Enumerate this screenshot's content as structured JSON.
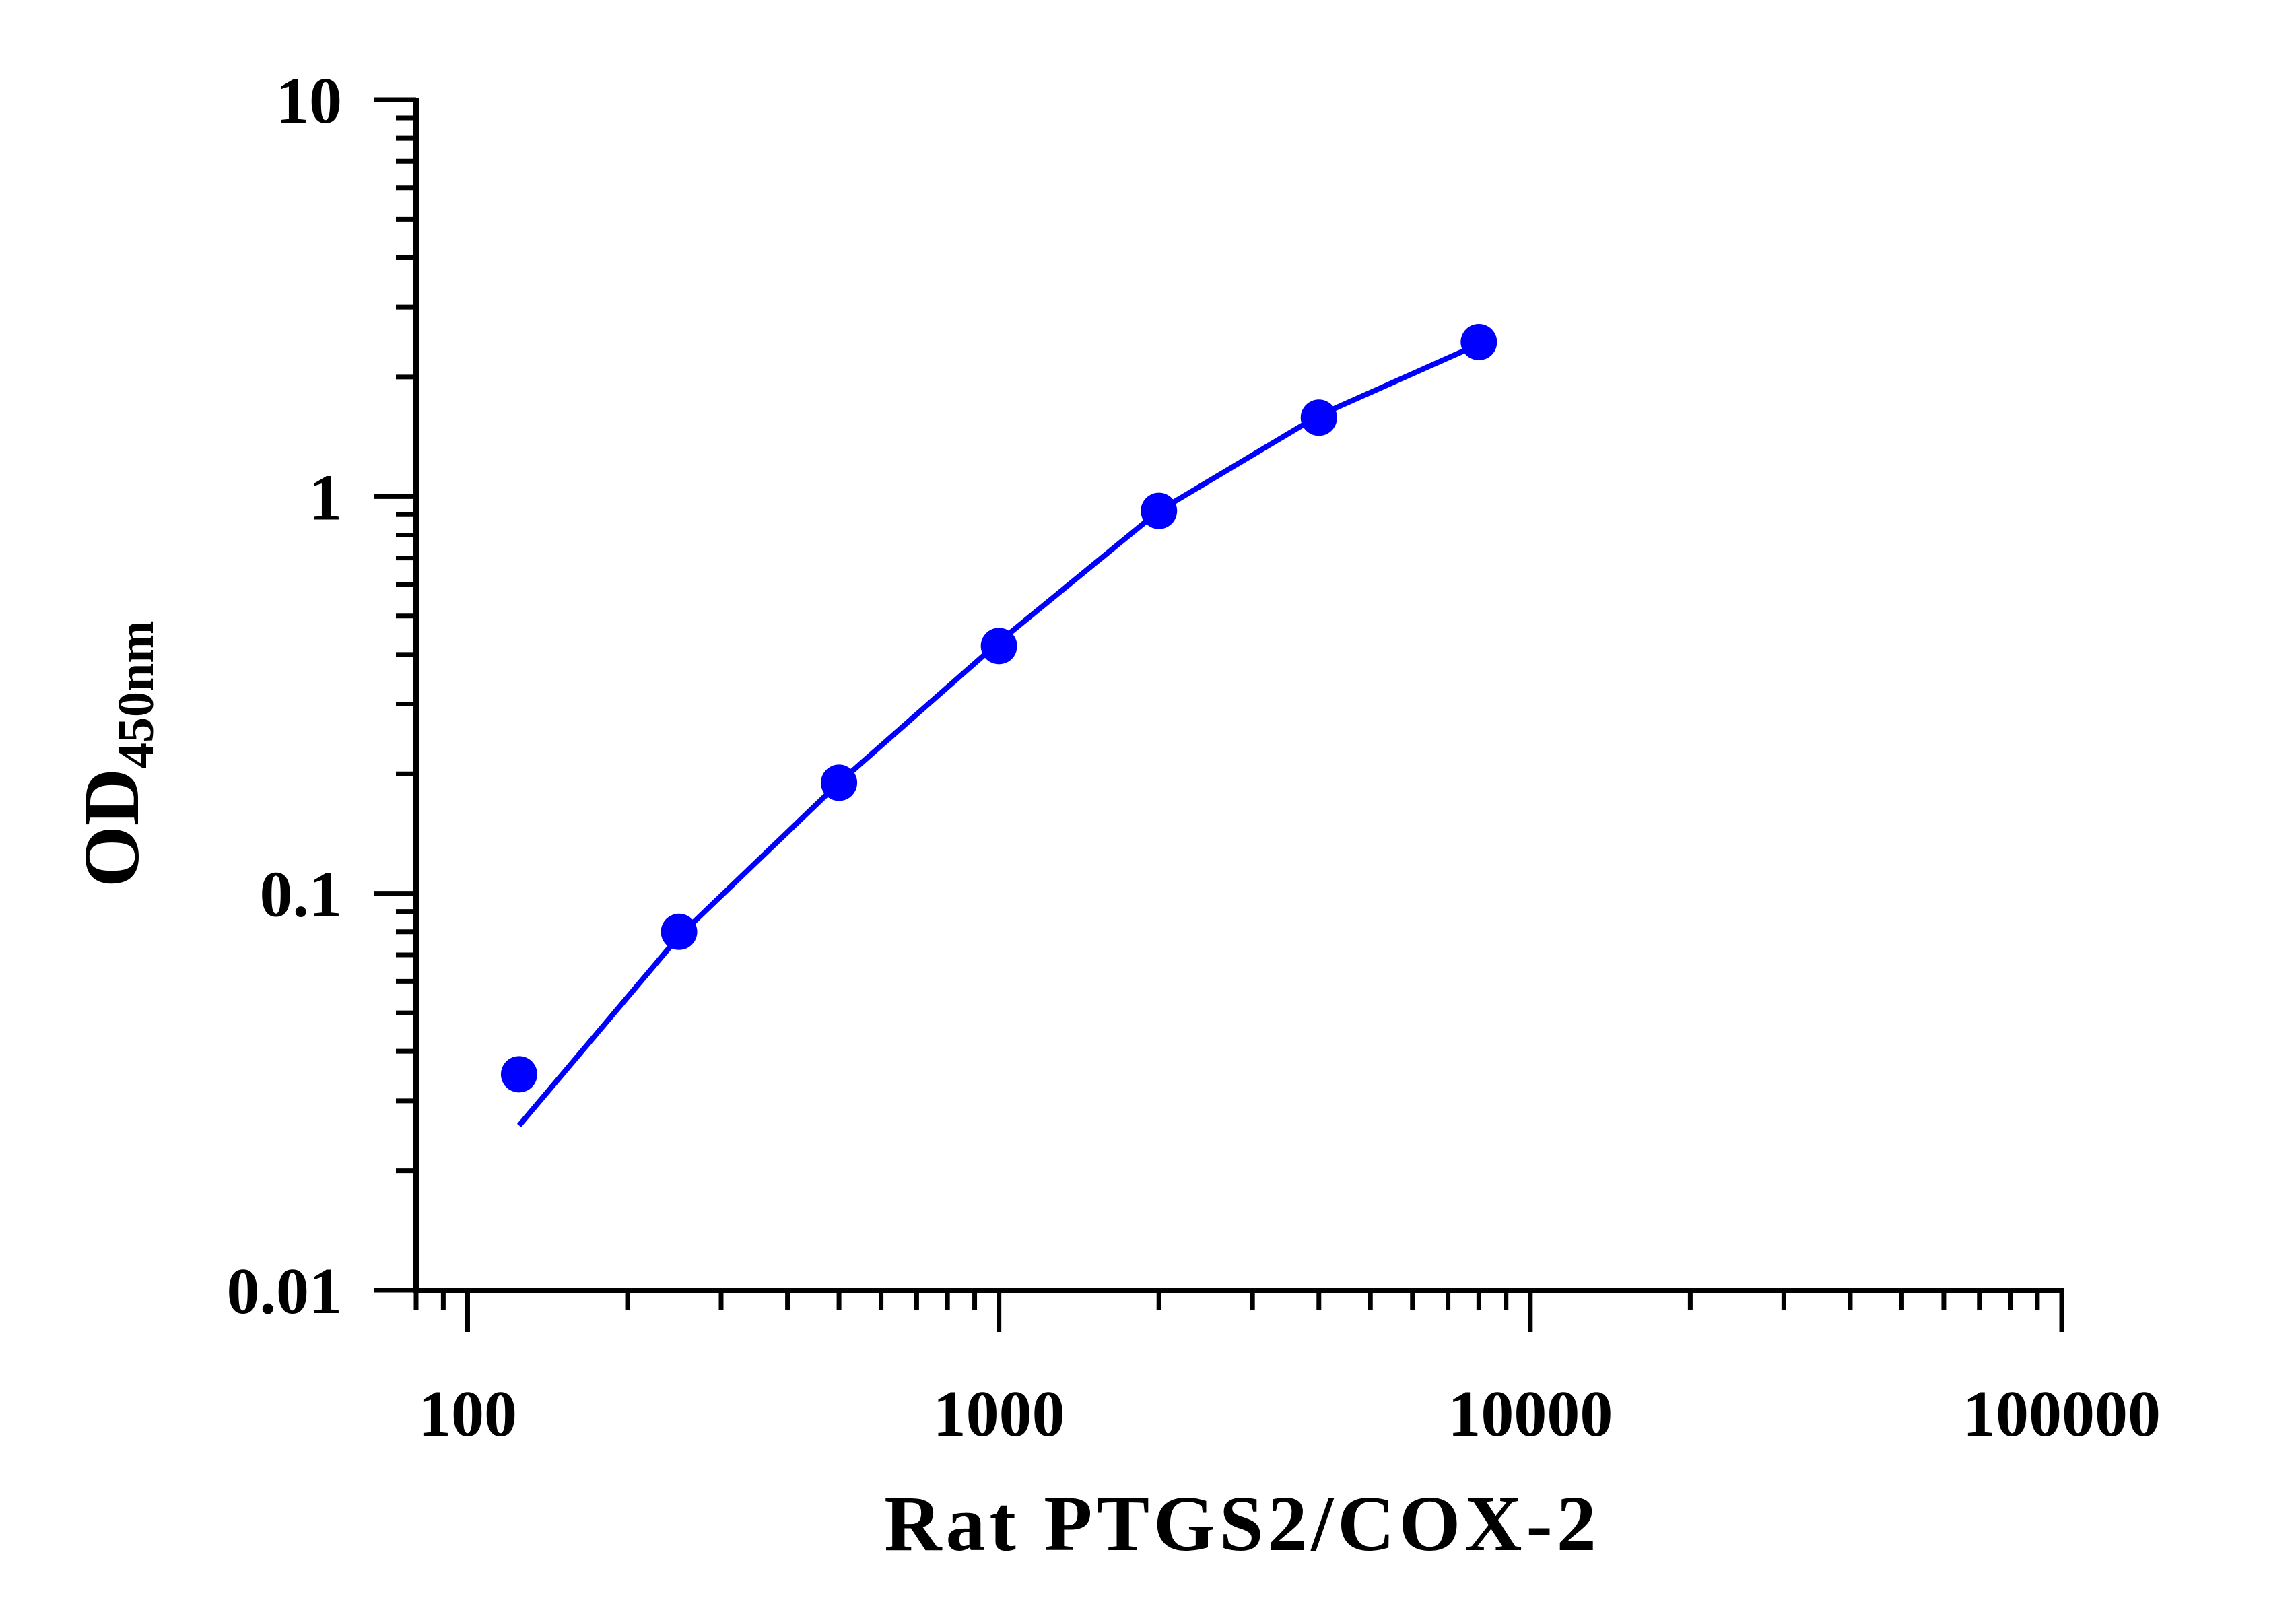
{
  "chart_data": {
    "type": "scatter",
    "xscale": "log",
    "yscale": "log",
    "xlim": [
      80,
      100000
    ],
    "ylim": [
      0.01,
      10
    ],
    "xlabel": "Rat PTGS2/COX-2",
    "ylabel": "OD",
    "ylabel_subscript": "450nm",
    "xticks": [
      {
        "value": 100,
        "label": "100"
      },
      {
        "value": 1000,
        "label": "1000"
      },
      {
        "value": 10000,
        "label": "10000"
      },
      {
        "value": 100000,
        "label": "100000"
      }
    ],
    "yticks": [
      {
        "value": 0.01,
        "label": "0.01"
      },
      {
        "value": 0.1,
        "label": "0.1"
      },
      {
        "value": 1,
        "label": "1"
      },
      {
        "value": 10,
        "label": "10"
      }
    ],
    "grid": false,
    "legend": "none",
    "series": [
      {
        "color": "#0000ff",
        "points": [
          {
            "x": 125,
            "y": 0.035
          },
          {
            "x": 250,
            "y": 0.08
          },
          {
            "x": 500,
            "y": 0.19
          },
          {
            "x": 1000,
            "y": 0.42
          },
          {
            "x": 2000,
            "y": 0.92
          },
          {
            "x": 4000,
            "y": 1.58
          },
          {
            "x": 8000,
            "y": 2.45
          }
        ]
      }
    ],
    "fit_curve": {
      "color": "#0000ff",
      "points": [
        {
          "x": 125,
          "y": 0.026
        },
        {
          "x": 250,
          "y": 0.078
        },
        {
          "x": 500,
          "y": 0.19
        },
        {
          "x": 1000,
          "y": 0.43
        },
        {
          "x": 2000,
          "y": 0.92
        },
        {
          "x": 4000,
          "y": 1.6
        },
        {
          "x": 8000,
          "y": 2.42
        }
      ]
    }
  }
}
